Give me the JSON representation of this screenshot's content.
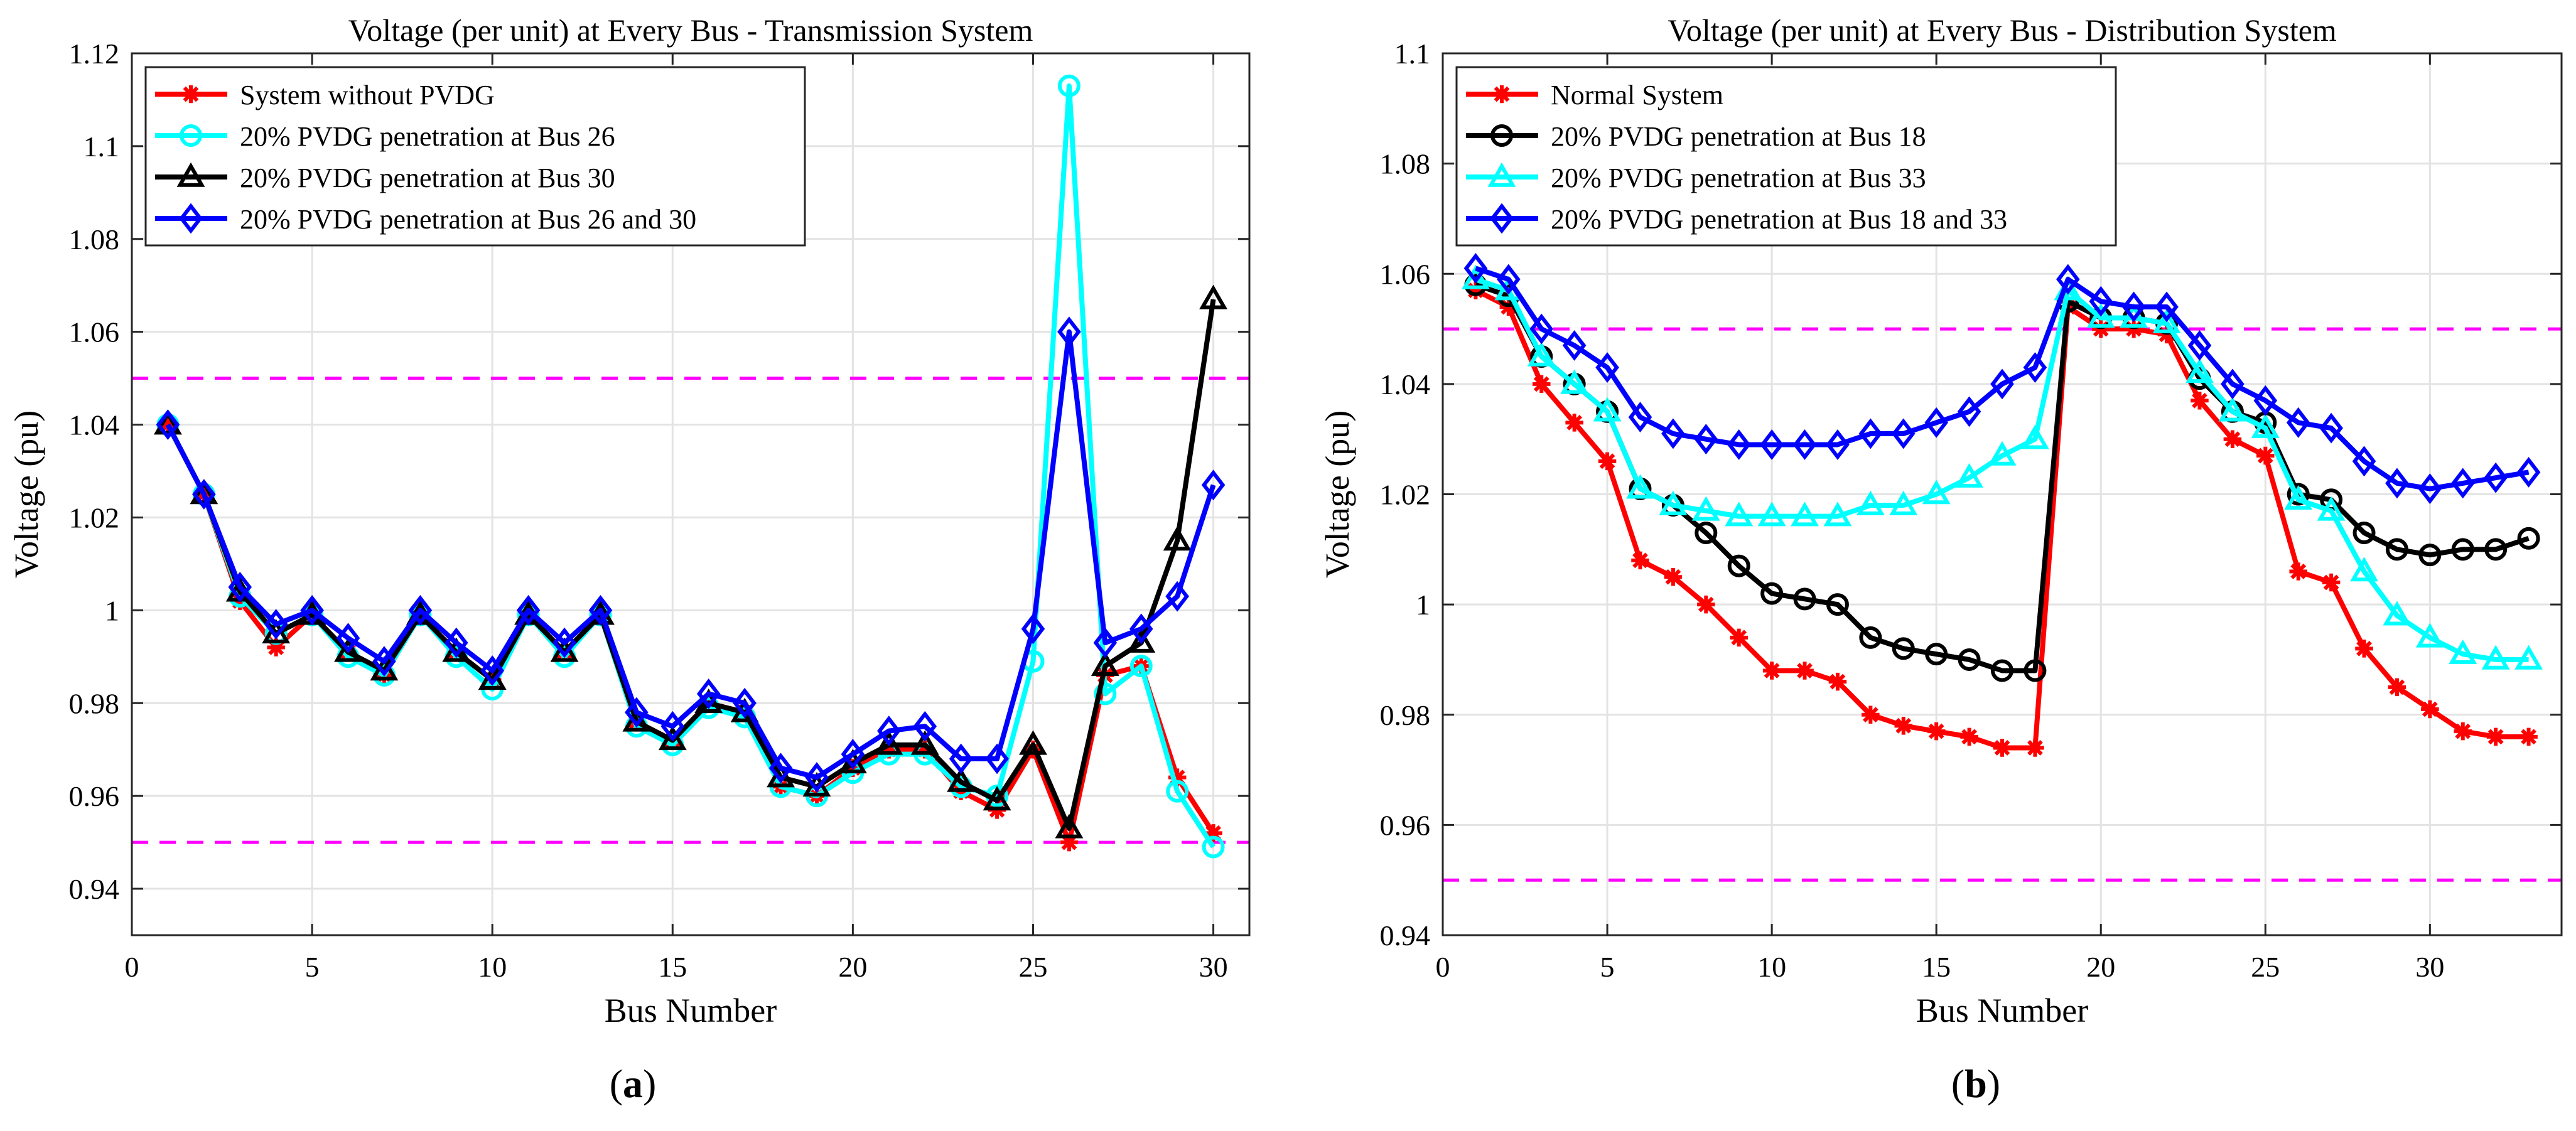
{
  "chart_data": [
    {
      "type": "line",
      "panel_label": "a",
      "title": "Voltage (per unit) at Every Bus - Transmission System",
      "xlabel": "Bus Number",
      "ylabel": "Voltage (pu)",
      "xlim": [
        0,
        31
      ],
      "ylim": [
        0.93,
        1.12
      ],
      "xticks": [
        0,
        5,
        10,
        15,
        20,
        25,
        30
      ],
      "yticks": [
        0.94,
        0.96,
        0.98,
        1,
        1.02,
        1.04,
        1.06,
        1.08,
        1.1,
        1.12
      ],
      "ytick_labels": [
        "0.94",
        "0.96",
        "0.98",
        "1",
        "1.02",
        "1.04",
        "1.06",
        "1.08",
        "1.1",
        "1.12"
      ],
      "grid": true,
      "legend_position": "top-left",
      "reference_lines": [
        {
          "y": 1.05,
          "color": "#ff00ff",
          "style": "dashed"
        },
        {
          "y": 0.95,
          "color": "#ff00ff",
          "style": "dashed"
        }
      ],
      "x": [
        1,
        2,
        3,
        4,
        5,
        6,
        7,
        8,
        9,
        10,
        11,
        12,
        13,
        14,
        15,
        16,
        17,
        18,
        19,
        20,
        21,
        22,
        23,
        24,
        25,
        26,
        27,
        28,
        29,
        30
      ],
      "series": [
        {
          "name": "System without PVDG",
          "color": "#ff0000",
          "marker": "asterisk",
          "values": [
            1.04,
            1.025,
            1.002,
            0.992,
            0.999,
            0.991,
            0.986,
            0.999,
            0.991,
            0.985,
            0.999,
            0.991,
            0.999,
            0.976,
            0.972,
            0.98,
            0.978,
            0.962,
            0.96,
            0.966,
            0.97,
            0.97,
            0.961,
            0.957,
            0.97,
            0.95,
            0.986,
            0.988,
            0.964,
            0.952
          ]
        },
        {
          "name": "20% PVDG penetration at Bus 26",
          "color": "#00ffff",
          "marker": "circle",
          "values": [
            1.04,
            1.025,
            1.003,
            0.995,
            0.999,
            0.99,
            0.986,
            0.999,
            0.99,
            0.983,
            0.999,
            0.99,
            0.999,
            0.975,
            0.971,
            0.979,
            0.977,
            0.962,
            0.96,
            0.965,
            0.969,
            0.969,
            0.962,
            0.96,
            0.989,
            1.113,
            0.982,
            0.988,
            0.961,
            0.949
          ]
        },
        {
          "name": "20% PVDG penetration at Bus 30",
          "color": "#000000",
          "marker": "triangle",
          "values": [
            1.04,
            1.025,
            1.004,
            0.995,
            0.999,
            0.991,
            0.987,
            0.999,
            0.991,
            0.985,
            0.999,
            0.991,
            0.999,
            0.976,
            0.972,
            0.98,
            0.978,
            0.964,
            0.962,
            0.967,
            0.971,
            0.971,
            0.963,
            0.959,
            0.971,
            0.953,
            0.988,
            0.993,
            1.015,
            1.067
          ]
        },
        {
          "name": "20% PVDG penetration at Bus 26 and 30",
          "color": "#0000ff",
          "marker": "diamond",
          "values": [
            1.04,
            1.025,
            1.005,
            0.997,
            1.0,
            0.994,
            0.989,
            1.0,
            0.993,
            0.987,
            1.0,
            0.993,
            1.0,
            0.978,
            0.975,
            0.982,
            0.98,
            0.966,
            0.964,
            0.969,
            0.974,
            0.975,
            0.968,
            0.968,
            0.996,
            1.06,
            0.993,
            0.996,
            1.003,
            1.027
          ]
        }
      ]
    },
    {
      "type": "line",
      "panel_label": "b",
      "title": "Voltage (per unit) at Every Bus - Distribution System",
      "xlabel": "Bus Number",
      "ylabel": "Voltage (pu)",
      "xlim": [
        0,
        34
      ],
      "ylim": [
        0.94,
        1.1
      ],
      "xticks": [
        0,
        5,
        10,
        15,
        20,
        25,
        30
      ],
      "yticks": [
        0.94,
        0.96,
        0.98,
        1,
        1.02,
        1.04,
        1.06,
        1.08,
        1.1
      ],
      "ytick_labels": [
        "0.94",
        "0.96",
        "0.98",
        "1",
        "1.02",
        "1.04",
        "1.06",
        "1.08",
        "1.1"
      ],
      "grid": true,
      "legend_position": "top-left",
      "reference_lines": [
        {
          "y": 1.05,
          "color": "#ff00ff",
          "style": "dashed"
        },
        {
          "y": 0.95,
          "color": "#ff00ff",
          "style": "dashed"
        }
      ],
      "x": [
        1,
        2,
        3,
        4,
        5,
        6,
        7,
        8,
        9,
        10,
        11,
        12,
        13,
        14,
        15,
        16,
        17,
        18,
        19,
        20,
        21,
        22,
        23,
        24,
        25,
        26,
        27,
        28,
        29,
        30,
        31,
        32,
        33
      ],
      "series": [
        {
          "name": "Normal System",
          "color": "#ff0000",
          "marker": "asterisk",
          "values": [
            1.057,
            1.054,
            1.04,
            1.033,
            1.026,
            1.008,
            1.005,
            1.0,
            0.994,
            0.988,
            0.988,
            0.986,
            0.98,
            0.978,
            0.977,
            0.976,
            0.974,
            0.974,
            1.054,
            1.05,
            1.05,
            1.049,
            1.037,
            1.03,
            1.027,
            1.006,
            1.004,
            0.992,
            0.985,
            0.981,
            0.977,
            0.976,
            0.976
          ]
        },
        {
          "name": "20% PVDG penetration at Bus 18",
          "color": "#000000",
          "marker": "circle",
          "values": [
            1.058,
            1.056,
            1.045,
            1.04,
            1.035,
            1.021,
            1.018,
            1.013,
            1.007,
            1.002,
            1.001,
            1.0,
            0.994,
            0.992,
            0.991,
            0.99,
            0.988,
            0.988,
            1.055,
            1.052,
            1.052,
            1.051,
            1.041,
            1.035,
            1.033,
            1.02,
            1.019,
            1.013,
            1.01,
            1.009,
            1.01,
            1.01,
            1.012
          ]
        },
        {
          "name": "20% PVDG penetration at Bus 33",
          "color": "#00ffff",
          "marker": "triangle",
          "values": [
            1.059,
            1.057,
            1.045,
            1.04,
            1.035,
            1.021,
            1.018,
            1.017,
            1.016,
            1.016,
            1.016,
            1.016,
            1.018,
            1.018,
            1.02,
            1.023,
            1.027,
            1.03,
            1.057,
            1.052,
            1.052,
            1.051,
            1.042,
            1.035,
            1.032,
            1.019,
            1.017,
            1.006,
            0.998,
            0.994,
            0.991,
            0.99,
            0.99
          ]
        },
        {
          "name": "20% PVDG penetration at Bus 18 and 33",
          "color": "#0000ff",
          "marker": "diamond",
          "values": [
            1.061,
            1.059,
            1.05,
            1.047,
            1.043,
            1.034,
            1.031,
            1.03,
            1.029,
            1.029,
            1.029,
            1.029,
            1.031,
            1.031,
            1.033,
            1.035,
            1.04,
            1.043,
            1.059,
            1.055,
            1.054,
            1.054,
            1.047,
            1.04,
            1.037,
            1.033,
            1.032,
            1.026,
            1.022,
            1.021,
            1.022,
            1.023,
            1.024
          ]
        }
      ]
    }
  ]
}
